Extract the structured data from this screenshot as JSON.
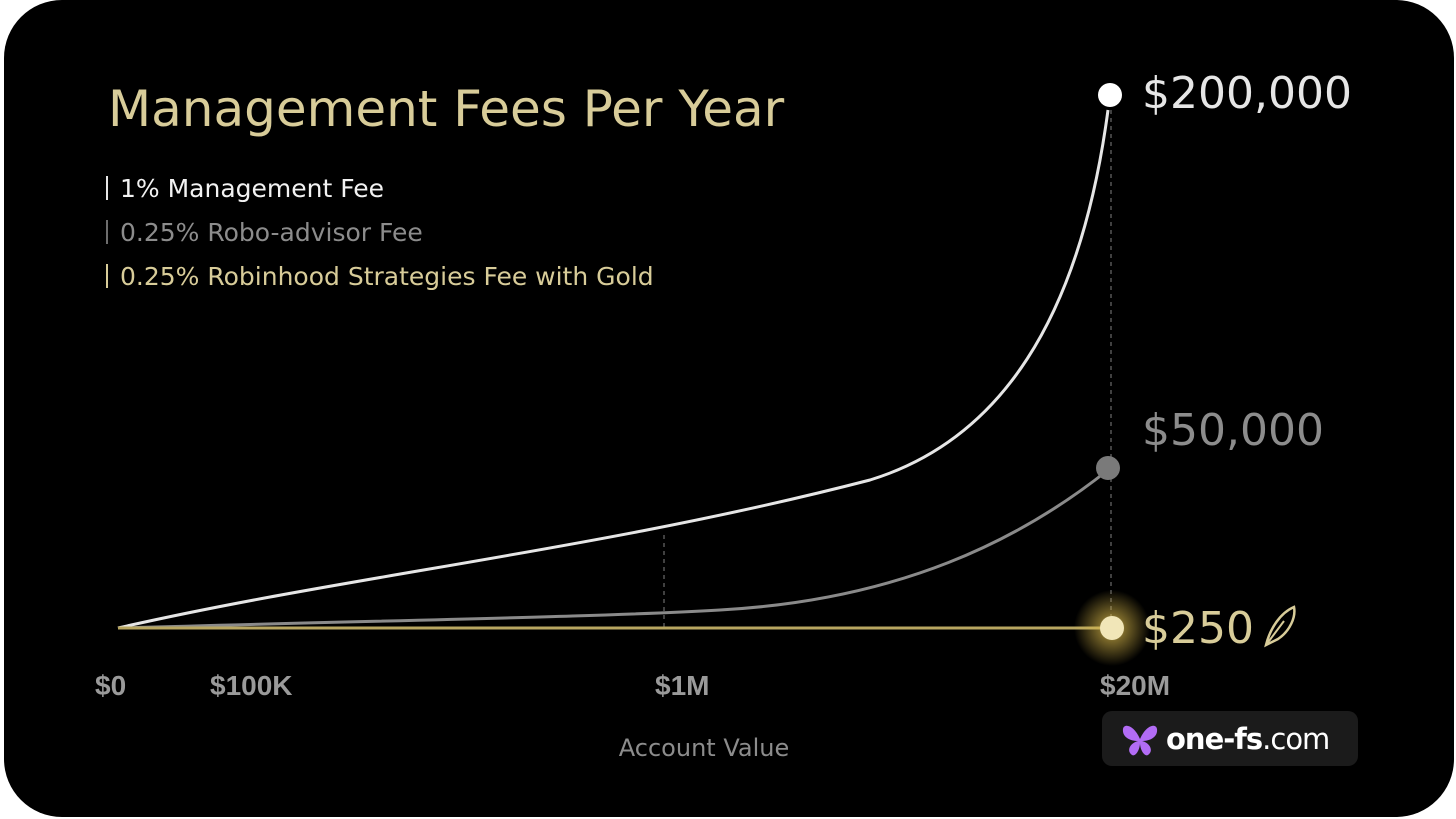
{
  "colors": {
    "background": "#000000",
    "management": "#e6e6e6",
    "robo": "#8c8c8c",
    "robinhood": "#d8cc99",
    "axis_label": "#9a9a9a",
    "watermark_bg": "#1b1b1b",
    "watermark_logo": "#b26cf5"
  },
  "chart_data": {
    "type": "line",
    "title": "Management Fees Per Year",
    "xlabel": "Account Value",
    "ylabel": "",
    "x_ticks": [
      "$0",
      "$100K",
      "$1M",
      "$20M"
    ],
    "x_tick_values": [
      0,
      100000,
      1000000,
      20000000
    ],
    "x_range": [
      0,
      20000000
    ],
    "y_range": [
      0,
      200000
    ],
    "grid": false,
    "legend_placement": "top-left",
    "legend": [
      {
        "label": "1% Management Fee",
        "color": "#e6e6e6"
      },
      {
        "label": "0.25% Robo-advisor Fee",
        "color": "#8c8c8c"
      },
      {
        "label": "0.25% Robinhood Strategies Fee with Gold",
        "color": "#d8cc99"
      }
    ],
    "series": [
      {
        "name": "1% Management Fee",
        "x": [
          0,
          20000000
        ],
        "y": [
          0,
          200000
        ],
        "end_label": "$200,000"
      },
      {
        "name": "0.25% Robo-advisor Fee",
        "x": [
          0,
          20000000
        ],
        "y": [
          0,
          50000
        ],
        "end_label": "$50,000"
      },
      {
        "name": "0.25% Robinhood Strategies Fee with Gold",
        "x": [
          0,
          20000000
        ],
        "y": [
          0,
          250
        ],
        "end_label": "$250"
      }
    ]
  },
  "watermark": {
    "text_bold": "one-fs",
    "text_light": ".com",
    "icon": "butterfly-icon"
  },
  "icons": {
    "robinhood": "feather-icon"
  }
}
